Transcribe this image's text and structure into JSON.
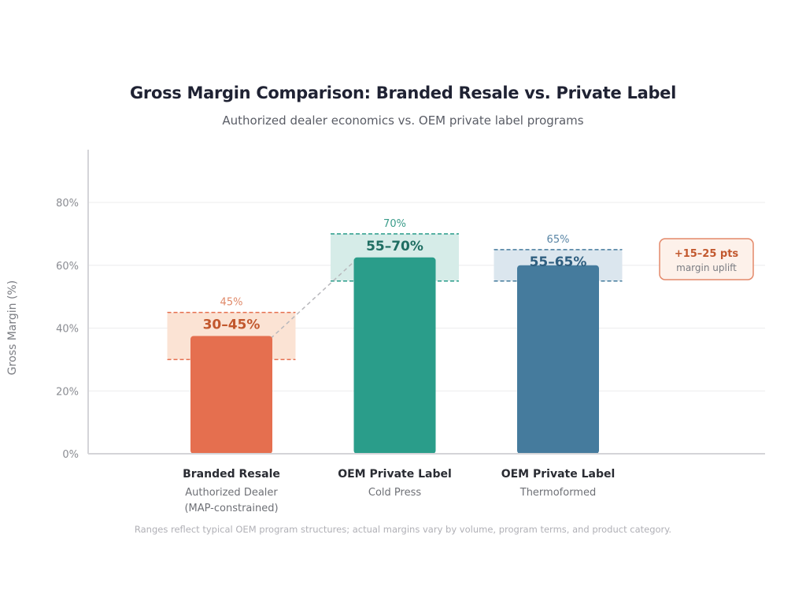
{
  "chart_data": {
    "type": "bar",
    "title": "Gross Margin Comparison: Branded Resale vs. Private Label",
    "subtitle": "Authorized dealer economics vs. OEM private label programs",
    "xlabel": "",
    "ylabel": "Gross Margin (%)",
    "ylim": [
      0,
      80
    ],
    "yticks": [
      0,
      20,
      40,
      60,
      80
    ],
    "ytick_labels": [
      "0%",
      "20%",
      "40%",
      "60%",
      "80%"
    ],
    "grid": true,
    "categories": [
      {
        "main": "Branded Resale",
        "sub": [
          "Authorized Dealer",
          "(MAP-constrained)"
        ]
      },
      {
        "main": "OEM Private Label",
        "sub": [
          "Cold Press"
        ]
      },
      {
        "main": "OEM Private Label",
        "sub": [
          "Thermoformed"
        ]
      }
    ],
    "values": [
      37.5,
      62.5,
      60
    ],
    "ranges": [
      {
        "low": 30,
        "high": 45,
        "label": "30–45%",
        "top_label": "45%"
      },
      {
        "low": 55,
        "high": 70,
        "label": "55–70%",
        "top_label": "70%"
      },
      {
        "low": 55,
        "high": 65,
        "label": "55–65%",
        "top_label": "65%"
      }
    ],
    "colors": [
      "#e56f4f",
      "#2a9d8a",
      "#457b9d"
    ],
    "band_fills": [
      "#fbe3d4",
      "#d6ece8",
      "#dbe6ee"
    ],
    "label_colors": [
      "#c2582e",
      "#1f6e62",
      "#2f5f80"
    ],
    "top_label_colors": [
      "#e08a6a",
      "#3a9c8a",
      "#5a86a6"
    ],
    "connector": {
      "from_category": 0,
      "to_category": 1,
      "style": "dashed"
    },
    "annotation": {
      "main": "+15–25 pts",
      "sub": "margin uplift",
      "position": "right"
    },
    "footnote": "Ranges reflect typical OEM program structures; actual margins vary by volume, program terms, and product category."
  }
}
